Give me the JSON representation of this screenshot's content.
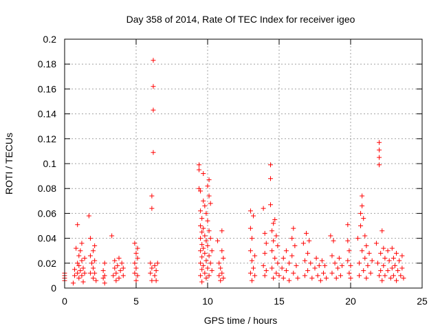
{
  "chart_data": {
    "type": "scatter",
    "title": "Day 358 of 2014, Rate Of TEC Index for receiver igeo",
    "xlabel": "GPS time / hours",
    "ylabel": "ROTI / TECUs",
    "xlim": [
      0,
      25
    ],
    "ylim": [
      0,
      0.2
    ],
    "xticks": [
      0,
      5,
      10,
      15,
      20,
      25
    ],
    "yticks": [
      0,
      0.02,
      0.04,
      0.06,
      0.08,
      0.1,
      0.12,
      0.14,
      0.16,
      0.18,
      0.2
    ],
    "xtick_labels": [
      "0",
      "5",
      "10",
      "15",
      "20",
      "25"
    ],
    "ytick_labels": [
      "0",
      "0.02",
      "0.04",
      "0.06",
      "0.08",
      "0.1",
      "0.12",
      "0.14",
      "0.16",
      "0.18",
      "0.2"
    ],
    "grid": true,
    "marker": "+",
    "series": [
      {
        "name": "ROTI",
        "color": "#ff0000",
        "points": [
          [
            0.0,
            0.008
          ],
          [
            0.0,
            0.012
          ],
          [
            0.0,
            0.006
          ],
          [
            0.0,
            0.01
          ],
          [
            0.6,
            0.004
          ],
          [
            0.7,
            0.01
          ],
          [
            0.7,
            0.015
          ],
          [
            0.8,
            0.032
          ],
          [
            0.9,
            0.051
          ],
          [
            0.9,
            0.012
          ],
          [
            0.9,
            0.02
          ],
          [
            1.0,
            0.008
          ],
          [
            1.0,
            0.018
          ],
          [
            1.0,
            0.026
          ],
          [
            1.1,
            0.014
          ],
          [
            1.1,
            0.03
          ],
          [
            1.2,
            0.01
          ],
          [
            1.2,
            0.022
          ],
          [
            1.2,
            0.036
          ],
          [
            1.3,
            0.016
          ],
          [
            1.3,
            0.005
          ],
          [
            1.4,
            0.024
          ],
          [
            1.4,
            0.012
          ],
          [
            1.7,
            0.058
          ],
          [
            1.8,
            0.04
          ],
          [
            1.8,
            0.026
          ],
          [
            1.8,
            0.012
          ],
          [
            1.9,
            0.02
          ],
          [
            2.0,
            0.008
          ],
          [
            2.0,
            0.016
          ],
          [
            2.0,
            0.03
          ],
          [
            2.1,
            0.034
          ],
          [
            2.1,
            0.012
          ],
          [
            2.1,
            0.022
          ],
          [
            2.2,
            0.006
          ],
          [
            2.7,
            0.008
          ],
          [
            2.7,
            0.014
          ],
          [
            2.8,
            0.02
          ],
          [
            2.8,
            0.004
          ],
          [
            2.8,
            0.01
          ],
          [
            3.3,
            0.042
          ],
          [
            3.4,
            0.01
          ],
          [
            3.5,
            0.016
          ],
          [
            3.5,
            0.022
          ],
          [
            3.6,
            0.006
          ],
          [
            3.6,
            0.012
          ],
          [
            3.7,
            0.018
          ],
          [
            3.8,
            0.024
          ],
          [
            3.8,
            0.008
          ],
          [
            3.9,
            0.014
          ],
          [
            4.0,
            0.02
          ],
          [
            4.1,
            0.01
          ],
          [
            4.1,
            0.016
          ],
          [
            4.9,
            0.036
          ],
          [
            4.9,
            0.02
          ],
          [
            4.9,
            0.012
          ],
          [
            5.0,
            0.028
          ],
          [
            5.0,
            0.006
          ],
          [
            5.0,
            0.016
          ],
          [
            5.1,
            0.024
          ],
          [
            5.1,
            0.01
          ],
          [
            5.1,
            0.032
          ],
          [
            6.0,
            0.02
          ],
          [
            6.0,
            0.012
          ],
          [
            6.1,
            0.006
          ],
          [
            6.1,
            0.016
          ],
          [
            6.1,
            0.064
          ],
          [
            6.1,
            0.074
          ],
          [
            6.2,
            0.109
          ],
          [
            6.2,
            0.143
          ],
          [
            6.2,
            0.162
          ],
          [
            6.2,
            0.183
          ],
          [
            6.3,
            0.01
          ],
          [
            6.3,
            0.018
          ],
          [
            6.4,
            0.014
          ],
          [
            6.4,
            0.006
          ],
          [
            6.5,
            0.02
          ],
          [
            9.4,
            0.099
          ],
          [
            9.4,
            0.095
          ],
          [
            9.4,
            0.08
          ],
          [
            9.5,
            0.078
          ],
          [
            9.5,
            0.062
          ],
          [
            9.5,
            0.05
          ],
          [
            9.5,
            0.04
          ],
          [
            9.5,
            0.03
          ],
          [
            9.5,
            0.02
          ],
          [
            9.5,
            0.01
          ],
          [
            9.6,
            0.056
          ],
          [
            9.6,
            0.045
          ],
          [
            9.6,
            0.035
          ],
          [
            9.6,
            0.025
          ],
          [
            9.6,
            0.015
          ],
          [
            9.6,
            0.005
          ],
          [
            9.7,
            0.092
          ],
          [
            9.7,
            0.07
          ],
          [
            9.7,
            0.048
          ],
          [
            9.7,
            0.032
          ],
          [
            9.7,
            0.018
          ],
          [
            9.8,
            0.066
          ],
          [
            9.8,
            0.042
          ],
          [
            9.8,
            0.028
          ],
          [
            9.8,
            0.012
          ],
          [
            9.9,
            0.06
          ],
          [
            9.9,
            0.038
          ],
          [
            9.9,
            0.022
          ],
          [
            9.9,
            0.008
          ],
          [
            10.0,
            0.082
          ],
          [
            10.0,
            0.054
          ],
          [
            10.0,
            0.034
          ],
          [
            10.0,
            0.016
          ],
          [
            10.1,
            0.087
          ],
          [
            10.1,
            0.074
          ],
          [
            10.1,
            0.046
          ],
          [
            10.1,
            0.026
          ],
          [
            10.1,
            0.01
          ],
          [
            10.2,
            0.068
          ],
          [
            10.2,
            0.04
          ],
          [
            10.2,
            0.02
          ],
          [
            10.3,
            0.03
          ],
          [
            10.3,
            0.014
          ],
          [
            10.7,
            0.038
          ],
          [
            10.8,
            0.02
          ],
          [
            10.8,
            0.01
          ],
          [
            10.9,
            0.016
          ],
          [
            10.9,
            0.006
          ],
          [
            11.0,
            0.046
          ],
          [
            11.0,
            0.03
          ],
          [
            11.0,
            0.012
          ],
          [
            11.1,
            0.024
          ],
          [
            11.1,
            0.008
          ],
          [
            13.0,
            0.062
          ],
          [
            13.0,
            0.048
          ],
          [
            13.0,
            0.03
          ],
          [
            13.0,
            0.012
          ],
          [
            13.1,
            0.04
          ],
          [
            13.1,
            0.022
          ],
          [
            13.1,
            0.006
          ],
          [
            13.2,
            0.058
          ],
          [
            13.2,
            0.016
          ],
          [
            13.3,
            0.026
          ],
          [
            13.3,
            0.01
          ],
          [
            13.9,
            0.064
          ],
          [
            13.9,
            0.018
          ],
          [
            14.0,
            0.044
          ],
          [
            14.0,
            0.01
          ],
          [
            14.0,
            0.028
          ],
          [
            14.1,
            0.036
          ],
          [
            14.1,
            0.014
          ],
          [
            14.4,
            0.099
          ],
          [
            14.4,
            0.088
          ],
          [
            14.4,
            0.067
          ],
          [
            14.5,
            0.046
          ],
          [
            14.5,
            0.03
          ],
          [
            14.5,
            0.016
          ],
          [
            14.6,
            0.052
          ],
          [
            14.6,
            0.038
          ],
          [
            14.6,
            0.008
          ],
          [
            14.7,
            0.055
          ],
          [
            14.7,
            0.024
          ],
          [
            14.8,
            0.042
          ],
          [
            14.8,
            0.012
          ],
          [
            14.9,
            0.034
          ],
          [
            14.9,
            0.02
          ],
          [
            15.0,
            0.01
          ],
          [
            15.2,
            0.016
          ],
          [
            15.3,
            0.024
          ],
          [
            15.3,
            0.008
          ],
          [
            15.5,
            0.03
          ],
          [
            15.5,
            0.014
          ],
          [
            15.7,
            0.02
          ],
          [
            15.7,
            0.006
          ],
          [
            15.9,
            0.04
          ],
          [
            15.9,
            0.026
          ],
          [
            16.0,
            0.048
          ],
          [
            16.0,
            0.012
          ],
          [
            16.1,
            0.034
          ],
          [
            16.2,
            0.018
          ],
          [
            16.3,
            0.008
          ],
          [
            16.7,
            0.036
          ],
          [
            16.8,
            0.022
          ],
          [
            16.8,
            0.01
          ],
          [
            16.9,
            0.044
          ],
          [
            17.0,
            0.028
          ],
          [
            17.0,
            0.014
          ],
          [
            17.1,
            0.038
          ],
          [
            17.2,
            0.02
          ],
          [
            17.3,
            0.008
          ],
          [
            17.5,
            0.016
          ],
          [
            17.6,
            0.024
          ],
          [
            17.7,
            0.01
          ],
          [
            17.8,
            0.018
          ],
          [
            17.9,
            0.006
          ],
          [
            18.0,
            0.022
          ],
          [
            18.1,
            0.012
          ],
          [
            18.2,
            0.018
          ],
          [
            18.3,
            0.008
          ],
          [
            18.6,
            0.042
          ],
          [
            18.7,
            0.026
          ],
          [
            18.7,
            0.012
          ],
          [
            18.8,
            0.038
          ],
          [
            18.9,
            0.02
          ],
          [
            19.0,
            0.008
          ],
          [
            19.1,
            0.016
          ],
          [
            19.2,
            0.024
          ],
          [
            19.3,
            0.01
          ],
          [
            19.4,
            0.018
          ],
          [
            19.8,
            0.051
          ],
          [
            19.8,
            0.038
          ],
          [
            19.8,
            0.022
          ],
          [
            19.9,
            0.012
          ],
          [
            19.9,
            0.03
          ],
          [
            20.0,
            0.018
          ],
          [
            20.0,
            0.008
          ],
          [
            20.5,
            0.04
          ],
          [
            20.6,
            0.02
          ],
          [
            20.6,
            0.01
          ],
          [
            20.7,
            0.06
          ],
          [
            20.7,
            0.05
          ],
          [
            20.8,
            0.074
          ],
          [
            20.8,
            0.066
          ],
          [
            20.8,
            0.03
          ],
          [
            20.9,
            0.056
          ],
          [
            20.9,
            0.014
          ],
          [
            21.0,
            0.042
          ],
          [
            21.0,
            0.024
          ],
          [
            21.1,
            0.034
          ],
          [
            21.1,
            0.008
          ],
          [
            21.2,
            0.018
          ],
          [
            21.3,
            0.028
          ],
          [
            21.4,
            0.012
          ],
          [
            21.5,
            0.022
          ],
          [
            21.8,
            0.036
          ],
          [
            21.9,
            0.02
          ],
          [
            22.0,
            0.117
          ],
          [
            22.0,
            0.111
          ],
          [
            22.0,
            0.105
          ],
          [
            22.0,
            0.099
          ],
          [
            22.0,
            0.01
          ],
          [
            22.1,
            0.028
          ],
          [
            22.1,
            0.014
          ],
          [
            22.2,
            0.046
          ],
          [
            22.2,
            0.006
          ],
          [
            22.3,
            0.032
          ],
          [
            22.3,
            0.018
          ],
          [
            22.4,
            0.024
          ],
          [
            22.4,
            0.01
          ],
          [
            22.6,
            0.03
          ],
          [
            22.6,
            0.014
          ],
          [
            22.7,
            0.022
          ],
          [
            22.8,
            0.008
          ],
          [
            22.9,
            0.032
          ],
          [
            22.9,
            0.016
          ],
          [
            23.0,
            0.024
          ],
          [
            23.0,
            0.01
          ],
          [
            23.1,
            0.018
          ],
          [
            23.2,
            0.028
          ],
          [
            23.2,
            0.006
          ],
          [
            23.3,
            0.014
          ],
          [
            23.4,
            0.022
          ],
          [
            23.5,
            0.01
          ],
          [
            23.6,
            0.026
          ],
          [
            23.6,
            0.016
          ],
          [
            23.7,
            0.008
          ]
        ]
      }
    ]
  }
}
